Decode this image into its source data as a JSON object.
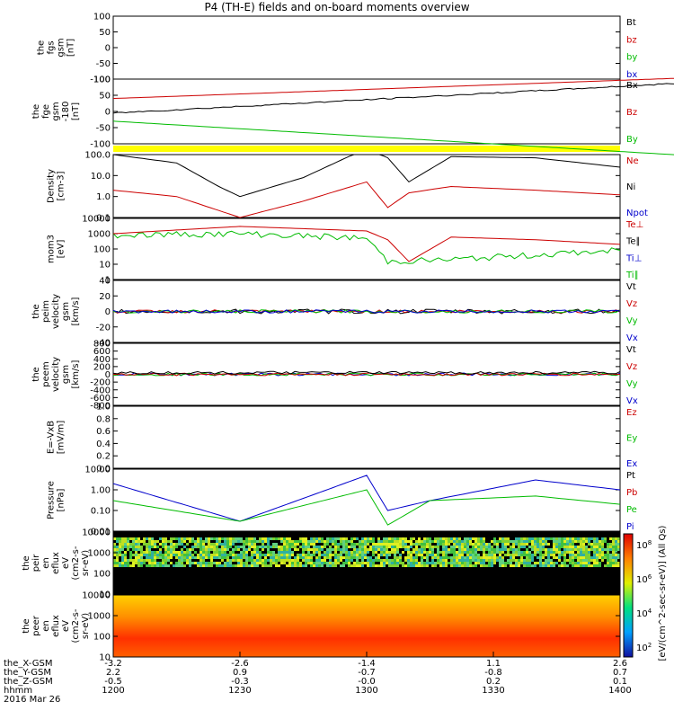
{
  "title": "P4 (TH-E) fields and on-board moments overview",
  "colors": {
    "black": "#000000",
    "red": "#cc0000",
    "green": "#00bb00",
    "blue": "#0000cc",
    "yellow": "#ffff00"
  },
  "panels": [
    {
      "id": "fgs",
      "ylabel": [
        "the",
        "fgs",
        "gsm",
        "[nT]"
      ],
      "yticks": [
        "100",
        "50",
        "0",
        "-50",
        "-100"
      ],
      "legend": [
        {
          "t": "Bt",
          "c": "black"
        },
        {
          "t": "bz",
          "c": "red"
        },
        {
          "t": "by",
          "c": "green"
        },
        {
          "t": "bx",
          "c": "blue"
        }
      ]
    },
    {
      "id": "fge",
      "ylabel": [
        "the",
        "fge",
        "gsm",
        "-180",
        "[nT]"
      ],
      "yticks": [
        "100",
        "50",
        "0",
        "-50",
        "-100"
      ],
      "legend": [
        {
          "t": "Bx",
          "c": "black"
        },
        {
          "t": "Bz",
          "c": "red"
        },
        {
          "t": "By",
          "c": "green"
        }
      ]
    },
    {
      "id": "density",
      "ylabel": [
        "Density",
        "[cm-3]"
      ],
      "yticks": [
        "100.0",
        "10.0",
        "1.0",
        "0.1"
      ],
      "legend": [
        {
          "t": "Ne",
          "c": "red"
        },
        {
          "t": "Ni",
          "c": "black"
        },
        {
          "t": "Npot",
          "c": "blue"
        }
      ]
    },
    {
      "id": "temp",
      "ylabel": [
        "mom3",
        "[eV]"
      ],
      "yticks": [
        "10000",
        "1000",
        "100",
        "10",
        "1"
      ],
      "legend": [
        {
          "t": "Te⊥",
          "c": "red"
        },
        {
          "t": "Te∥",
          "c": "black"
        },
        {
          "t": "Ti⊥",
          "c": "blue"
        },
        {
          "t": "Ti∥",
          "c": "green"
        }
      ]
    },
    {
      "id": "peimvel",
      "ylabel": [
        "the",
        "peim",
        "velocity",
        "gsm",
        "[km/s]"
      ],
      "yticks": [
        "40",
        "20",
        "0",
        "-20",
        "-40"
      ],
      "legend": [
        {
          "t": "Vt",
          "c": "black"
        },
        {
          "t": "Vz",
          "c": "red"
        },
        {
          "t": "Vy",
          "c": "green"
        },
        {
          "t": "Vx",
          "c": "blue"
        }
      ]
    },
    {
      "id": "peemvel",
      "ylabel": [
        "the",
        "peem",
        "velocity",
        "gsm",
        "[km/s]"
      ],
      "yticks": [
        "800",
        "600",
        "400",
        "200",
        "0",
        "-200",
        "-400",
        "-600",
        "-800"
      ],
      "legend": [
        {
          "t": "Vt",
          "c": "black"
        },
        {
          "t": "Vz",
          "c": "red"
        },
        {
          "t": "Vy",
          "c": "green"
        },
        {
          "t": "Vx",
          "c": "blue"
        }
      ]
    },
    {
      "id": "efield",
      "ylabel": [
        "E=-VxB",
        "[mV/m]"
      ],
      "yticks": [
        "1.0",
        "0.8",
        "0.6",
        "0.4",
        "0.2",
        "0.0"
      ],
      "legend": [
        {
          "t": "Ez",
          "c": "red"
        },
        {
          "t": "Ey",
          "c": "green"
        },
        {
          "t": "Ex",
          "c": "blue"
        }
      ]
    },
    {
      "id": "pressure",
      "ylabel": [
        "Pressure",
        "[nPa]"
      ],
      "yticks": [
        "10.00",
        "1.00",
        "0.10",
        "0.01"
      ],
      "legend": [
        {
          "t": "Pt",
          "c": "black"
        },
        {
          "t": "Pb",
          "c": "red"
        },
        {
          "t": "Pe",
          "c": "green"
        },
        {
          "t": "Pi",
          "c": "blue"
        }
      ]
    },
    {
      "id": "peir",
      "ylabel": [
        "the",
        "peir",
        "en",
        "eflux",
        "eV",
        "(cm2-s-",
        "sr-eV)"
      ],
      "yticks": [
        "10000",
        "1000",
        "100",
        "10"
      ],
      "legend": []
    },
    {
      "id": "peer",
      "ylabel": [
        "the",
        "peer",
        "en",
        "eflux",
        "eV",
        "(cm2-s-",
        "sr-eV)"
      ],
      "yticks": [
        "10000",
        "1000",
        "100",
        "10"
      ],
      "legend": []
    }
  ],
  "colorbar": {
    "label": "[eV/(cm^2-sec-sr-eV)] (All Qs)",
    "ticks": [
      "10^8",
      "10^6",
      "10^4",
      "10^2"
    ]
  },
  "xaxis": {
    "rows": [
      {
        "name": "the_X-GSM",
        "values": [
          "-3.2",
          "-2.6",
          "-1.4",
          "1.1",
          "2.6"
        ]
      },
      {
        "name": "the_Y-GSM",
        "values": [
          "2.2",
          "0.9",
          "-0.7",
          "-0.8",
          "0.7"
        ]
      },
      {
        "name": "the_Z-GSM",
        "values": [
          "-0.5",
          "-0.3",
          "-0.0",
          "0.2",
          "0.1"
        ]
      },
      {
        "name": "hhmm",
        "values": [
          "1200",
          "1230",
          "1300",
          "1330",
          "1400"
        ]
      }
    ],
    "date": "2016 Mar 26"
  },
  "chart_data": {
    "type": "line",
    "x_label": "hhmm",
    "x_range": [
      "1200",
      "1400"
    ],
    "series": [
      {
        "name": "Ni",
        "panel": "density",
        "x": [
          "1200",
          "1215",
          "1225",
          "1230",
          "1245",
          "1300",
          "1305",
          "1310",
          "1320",
          "1340",
          "1400"
        ],
        "values": [
          100,
          40,
          3,
          1,
          8,
          200,
          70,
          5,
          80,
          70,
          25
        ]
      },
      {
        "name": "Ne",
        "panel": "density",
        "x": [
          "1200",
          "1215",
          "1230",
          "1245",
          "1300",
          "1305",
          "1310",
          "1320",
          "1340",
          "1400"
        ],
        "values": [
          2,
          1,
          0.1,
          0.6,
          5,
          0.3,
          1.5,
          3,
          2,
          1.2
        ]
      },
      {
        "name": "Ti∥",
        "panel": "temp",
        "x": [
          "1200",
          "1230",
          "1300",
          "1305",
          "1320",
          "1340",
          "1400"
        ],
        "values": [
          800,
          1000,
          500,
          15,
          20,
          40,
          80
        ]
      },
      {
        "name": "Te⊥",
        "panel": "temp",
        "x": [
          "1200",
          "1230",
          "1300",
          "1305",
          "1310",
          "1320",
          "1340",
          "1400"
        ],
        "values": [
          1000,
          3000,
          1500,
          400,
          15,
          600,
          400,
          200
        ]
      },
      {
        "name": "Pi",
        "panel": "pressure",
        "x": [
          "1200",
          "1230",
          "1300",
          "1305",
          "1315",
          "1340",
          "1400"
        ],
        "values": [
          2,
          0.03,
          5,
          0.1,
          0.3,
          3,
          1
        ]
      },
      {
        "name": "Pe",
        "panel": "pressure",
        "x": [
          "1200",
          "1230",
          "1300",
          "1305",
          "1315",
          "1340",
          "1400"
        ],
        "values": [
          0.3,
          0.03,
          1,
          0.02,
          0.3,
          0.5,
          0.2
        ]
      }
    ]
  }
}
